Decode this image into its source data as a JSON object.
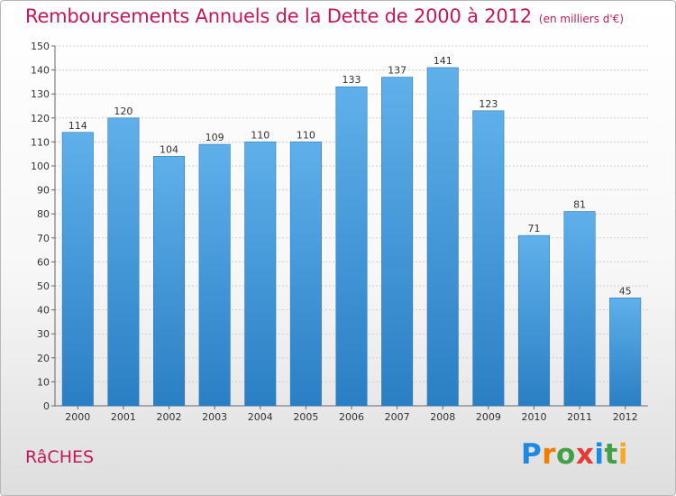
{
  "title": "Remboursements Annuels de la Dette de 2000 à 2012",
  "subtitle": "(en milliers d'€)",
  "commune": "RâCHES",
  "logo": {
    "letters": [
      "P",
      "r",
      "o",
      "x",
      "i",
      "t",
      "i"
    ],
    "colors": [
      "#1e88e5",
      "#f57c00",
      "#43a047",
      "#e53935",
      "#1e88e5",
      "#43a047",
      "#f9a825"
    ]
  },
  "colors": {
    "bar_light": "#5fb0ea",
    "bar_dark": "#2a7fc4",
    "accent": "#c2185b"
  },
  "chart_data": {
    "type": "bar",
    "categories": [
      "2000",
      "2001",
      "2002",
      "2003",
      "2004",
      "2005",
      "2006",
      "2007",
      "2008",
      "2009",
      "2010",
      "2011",
      "2012"
    ],
    "values": [
      114,
      120,
      104,
      109,
      110,
      110,
      133,
      137,
      141,
      123,
      71,
      81,
      45
    ],
    "data_labels": [
      "114",
      "120",
      "104",
      "109",
      "110",
      "110",
      "133",
      "137",
      "141",
      "123",
      "71",
      "81",
      "45"
    ],
    "yticks": [
      "0",
      "10",
      "20",
      "30",
      "40",
      "50",
      "60",
      "70",
      "80",
      "90",
      "100",
      "110",
      "120",
      "130",
      "140",
      "150"
    ],
    "ylim": [
      0,
      150
    ],
    "grid": true,
    "xlabel": "",
    "ylabel": ""
  }
}
